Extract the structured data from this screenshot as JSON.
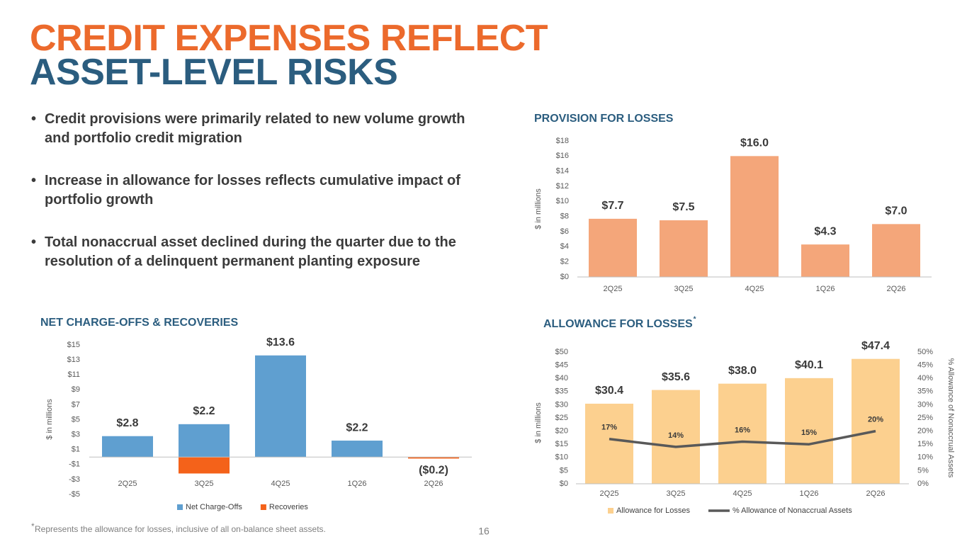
{
  "header": {
    "title_line1": "CREDIT EXPENSES REFLECT",
    "title_line2": "ASSET-LEVEL RISKS"
  },
  "bullets": [
    "Credit provisions were primarily related to new volume growth and portfolio credit migration",
    "Increase in allowance for losses reflects cumulative impact of portfolio growth",
    "Total nonaccrual asset declined during the quarter due to the resolution of a delinquent permanent planting exposure"
  ],
  "chart_data": [
    {
      "type": "bar",
      "title": "PROVISION FOR LOSSES",
      "y_label": "$ in millions",
      "categories": [
        "2Q25",
        "3Q25",
        "4Q25",
        "1Q26",
        "2Q26"
      ],
      "values": [
        7.7,
        7.5,
        16.0,
        4.3,
        7.0
      ],
      "value_labels": [
        "$7.7",
        "$7.5",
        "$16.0",
        "$4.3",
        "$7.0"
      ],
      "color": "#f4a67a",
      "ylim": [
        0,
        18
      ],
      "yticks": [
        {
          "value": 0,
          "label": "$0"
        },
        {
          "value": 2,
          "label": "$2"
        },
        {
          "value": 4,
          "label": "$4"
        },
        {
          "value": 6,
          "label": "$6"
        },
        {
          "value": 8,
          "label": "$8"
        },
        {
          "value": 10,
          "label": "$10"
        },
        {
          "value": 12,
          "label": "$12"
        },
        {
          "value": 14,
          "label": "$14"
        },
        {
          "value": 16,
          "label": "$16"
        },
        {
          "value": 18,
          "label": "$18"
        }
      ]
    },
    {
      "type": "stacked_bar",
      "title": "NET CHARGE-OFFS & RECOVERIES",
      "y_label": "$ in millions",
      "categories": [
        "2Q25",
        "3Q25",
        "4Q25",
        "1Q26",
        "2Q26"
      ],
      "series": [
        {
          "name": "Net Charge-Offs",
          "color": "#5f9fd0",
          "values": [
            2.8,
            4.4,
            13.6,
            2.2,
            0
          ]
        },
        {
          "name": "Recoveries",
          "color": "#f4621a",
          "values": [
            0,
            -2.2,
            0,
            0,
            -0.2
          ]
        }
      ],
      "values": [
        2.8,
        2.2,
        13.6,
        2.2,
        -0.2
      ],
      "value_labels": [
        "$2.8",
        "$2.2",
        "$13.6",
        "$2.2",
        "($0.2)"
      ],
      "ylim": [
        -5,
        15
      ],
      "yticks": [
        {
          "value": -5,
          "label": "-$5"
        },
        {
          "value": -3,
          "label": "-$3"
        },
        {
          "value": -1,
          "label": "-$1"
        },
        {
          "value": 1,
          "label": "$1"
        },
        {
          "value": 3,
          "label": "$3"
        },
        {
          "value": 5,
          "label": "$5"
        },
        {
          "value": 7,
          "label": "$7"
        },
        {
          "value": 9,
          "label": "$9"
        },
        {
          "value": 11,
          "label": "$11"
        },
        {
          "value": 13,
          "label": "$13"
        },
        {
          "value": 15,
          "label": "$15"
        }
      ]
    },
    {
      "type": "bar_line",
      "title": "ALLOWANCE FOR LOSSES",
      "title_marker": "*",
      "y_label": "$ in millions",
      "y2_label": "% Allowance of Nonaccrual Assets",
      "categories": [
        "2Q25",
        "3Q25",
        "4Q25",
        "1Q26",
        "2Q26"
      ],
      "series": [
        {
          "name": "Allowance for Losses",
          "color": "#fcd08f",
          "values": [
            30.4,
            35.6,
            38.0,
            40.1,
            47.4
          ],
          "value_labels": [
            "$30.4",
            "$35.6",
            "$38.0",
            "$40.1",
            "$47.4"
          ]
        },
        {
          "name": "% Allowance of Nonaccrual Assets",
          "color": "#595959",
          "axis": "y2",
          "values": [
            17,
            14,
            16,
            15,
            20
          ],
          "value_labels": [
            "17%",
            "14%",
            "16%",
            "15%",
            "20%"
          ]
        }
      ],
      "ylim": [
        0,
        50
      ],
      "yticks": [
        {
          "value": 0,
          "label": "$0"
        },
        {
          "value": 5,
          "label": "$5"
        },
        {
          "value": 10,
          "label": "$10"
        },
        {
          "value": 15,
          "label": "$15"
        },
        {
          "value": 20,
          "label": "$20"
        },
        {
          "value": 25,
          "label": "$25"
        },
        {
          "value": 30,
          "label": "$30"
        },
        {
          "value": 35,
          "label": "$35"
        },
        {
          "value": 40,
          "label": "$40"
        },
        {
          "value": 45,
          "label": "$45"
        },
        {
          "value": 50,
          "label": "$50"
        }
      ],
      "y2lim": [
        0,
        50
      ],
      "y2ticks": [
        {
          "value": 0,
          "label": "0%"
        },
        {
          "value": 5,
          "label": "5%"
        },
        {
          "value": 10,
          "label": "10%"
        },
        {
          "value": 15,
          "label": "15%"
        },
        {
          "value": 20,
          "label": "20%"
        },
        {
          "value": 25,
          "label": "25%"
        },
        {
          "value": 30,
          "label": "30%"
        },
        {
          "value": 35,
          "label": "35%"
        },
        {
          "value": 40,
          "label": "40%"
        },
        {
          "value": 45,
          "label": "45%"
        },
        {
          "value": 50,
          "label": "50%"
        }
      ]
    }
  ],
  "footnote": {
    "marker": "*",
    "text": "Represents the allowance for losses, inclusive of all on-balance sheet assets."
  },
  "page_number": "16"
}
